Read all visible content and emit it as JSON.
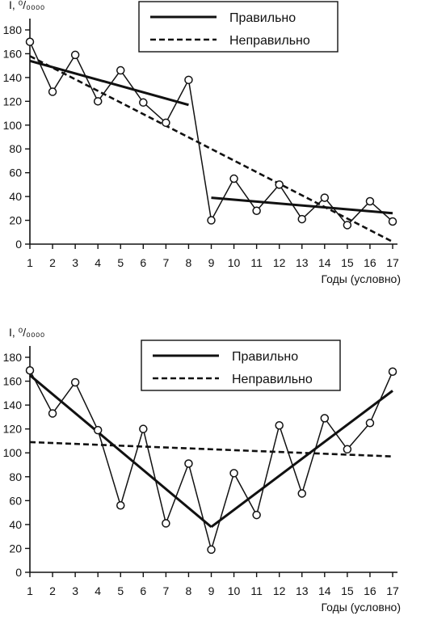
{
  "chart_data": [
    {
      "type": "line",
      "ylabel": "I, ⁰/₀₀₀₀",
      "xlabel": "Годы (условно)",
      "x": [
        1,
        2,
        3,
        4,
        5,
        6,
        7,
        8,
        9,
        10,
        11,
        12,
        13,
        14,
        15,
        16,
        17
      ],
      "ylim": [
        0,
        180
      ],
      "yticks": [
        0,
        20,
        40,
        60,
        80,
        100,
        120,
        140,
        160,
        180
      ],
      "data_values": [
        170,
        128,
        159,
        120,
        146,
        119,
        102,
        138,
        20,
        55,
        28,
        50,
        21,
        39,
        16,
        36,
        19
      ],
      "legend": {
        "solid": "Правильно",
        "dashed": "Неправильно",
        "position": "top-right"
      },
      "trend_correct": [
        {
          "x": [
            1,
            8
          ],
          "y": [
            154,
            117
          ]
        },
        {
          "x": [
            9,
            17
          ],
          "y": [
            39,
            26
          ]
        }
      ],
      "trend_incorrect": [
        {
          "x": [
            1,
            17
          ],
          "y": [
            158,
            2
          ]
        }
      ]
    },
    {
      "type": "line",
      "ylabel": "I, ⁰/₀₀₀₀",
      "xlabel": "Годы (условно)",
      "x": [
        1,
        2,
        3,
        4,
        5,
        6,
        7,
        8,
        9,
        10,
        11,
        12,
        13,
        14,
        15,
        16,
        17
      ],
      "ylim": [
        0,
        180
      ],
      "yticks": [
        0,
        20,
        40,
        60,
        80,
        100,
        120,
        140,
        160,
        180
      ],
      "data_values": [
        169,
        133,
        159,
        119,
        56,
        120,
        41,
        91,
        19,
        83,
        48,
        123,
        66,
        129,
        103,
        125,
        168
      ],
      "legend": {
        "solid": "Правильно",
        "dashed": "Неправильно",
        "position": "top-right"
      },
      "trend_correct": [
        {
          "x": [
            1,
            9
          ],
          "y": [
            165,
            38
          ]
        },
        {
          "x": [
            9,
            17
          ],
          "y": [
            38,
            152
          ]
        }
      ],
      "trend_incorrect": [
        {
          "x": [
            1,
            17
          ],
          "y": [
            109,
            97
          ]
        }
      ]
    }
  ]
}
